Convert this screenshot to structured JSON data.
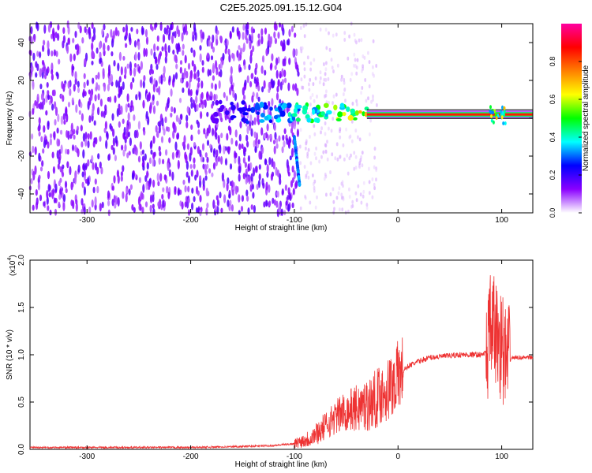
{
  "title": "C2E5.2025.091.15.12.G04",
  "chart_data": [
    {
      "type": "heatmap",
      "xlabel": "Height of straight line (km)",
      "ylabel": "Frequency (Hz)",
      "xlim": [
        -355,
        130
      ],
      "ylim": [
        -50,
        50
      ],
      "x_ticks": [
        -300,
        -200,
        -100,
        0,
        100
      ],
      "y_ticks": [
        -40,
        -20,
        0,
        20,
        40
      ],
      "colorbar": {
        "label": "Normalized spectral amplitude",
        "ticks": [
          0.0,
          0.2,
          0.4,
          0.6,
          0.8
        ],
        "tick_labels": [
          "0.0",
          "0.2",
          "0.4",
          "0.6",
          "0.8"
        ],
        "range": [
          0,
          1
        ],
        "colormap": [
          "#ffffff",
          "#8a00ff",
          "#0000ff",
          "#00ffff",
          "#00ff00",
          "#ffff00",
          "#ff7f00",
          "#ff0000",
          "#ff00a0"
        ]
      },
      "features": [
        {
          "region": "noise",
          "x_range": [
            -355,
            -95
          ],
          "amplitude": 0.1
        },
        {
          "region": "sparse_noise",
          "x_range": [
            -95,
            -20
          ],
          "amplitude": 0.04
        },
        {
          "region": "streak",
          "x": [
            -100,
            -95
          ],
          "y": [
            -10,
            -35
          ],
          "amplitude": 0.25
        },
        {
          "region": "carrier_band",
          "x_range": [
            -30,
            130
          ],
          "y": 2,
          "amplitude": 0.85
        },
        {
          "region": "carrier_onset",
          "x_range": [
            -80,
            -30
          ],
          "y": 3,
          "amplitude": 0.45
        }
      ]
    },
    {
      "type": "line",
      "xlabel": "Height of straight line (km)",
      "ylabel": "SNR (10 * v/v)",
      "scale_label": "(x10",
      "scale_exponent": "4",
      "xlim": [
        -355,
        130
      ],
      "ylim": [
        0,
        2
      ],
      "x_ticks": [
        -300,
        -200,
        -100,
        0,
        100
      ],
      "y_ticks": [
        0,
        0.5,
        1,
        1.5,
        2
      ],
      "y_tick_labels": [
        "0.0",
        "0.5",
        "1.0",
        "1.5",
        "2.0"
      ],
      "color": "#ee3333",
      "series": [
        {
          "x": [
            -355,
            -300,
            -250,
            -200,
            -150,
            -120,
            -100,
            -85,
            -75,
            -65,
            -55,
            -45,
            -35,
            -25,
            -15,
            -8,
            0,
            10,
            20,
            30,
            40,
            50,
            60,
            70,
            80,
            85,
            90,
            95,
            100,
            105,
            110,
            120,
            130
          ],
          "values": [
            0.02,
            0.02,
            0.02,
            0.02,
            0.03,
            0.04,
            0.06,
            0.12,
            0.2,
            0.3,
            0.38,
            0.42,
            0.45,
            0.5,
            0.6,
            0.65,
            0.78,
            0.88,
            0.93,
            0.97,
            0.98,
            0.99,
            1.0,
            1.0,
            1.0,
            1.02,
            1.3,
            1.2,
            1.1,
            0.9,
            0.97,
            0.97,
            0.97
          ]
        }
      ]
    }
  ]
}
